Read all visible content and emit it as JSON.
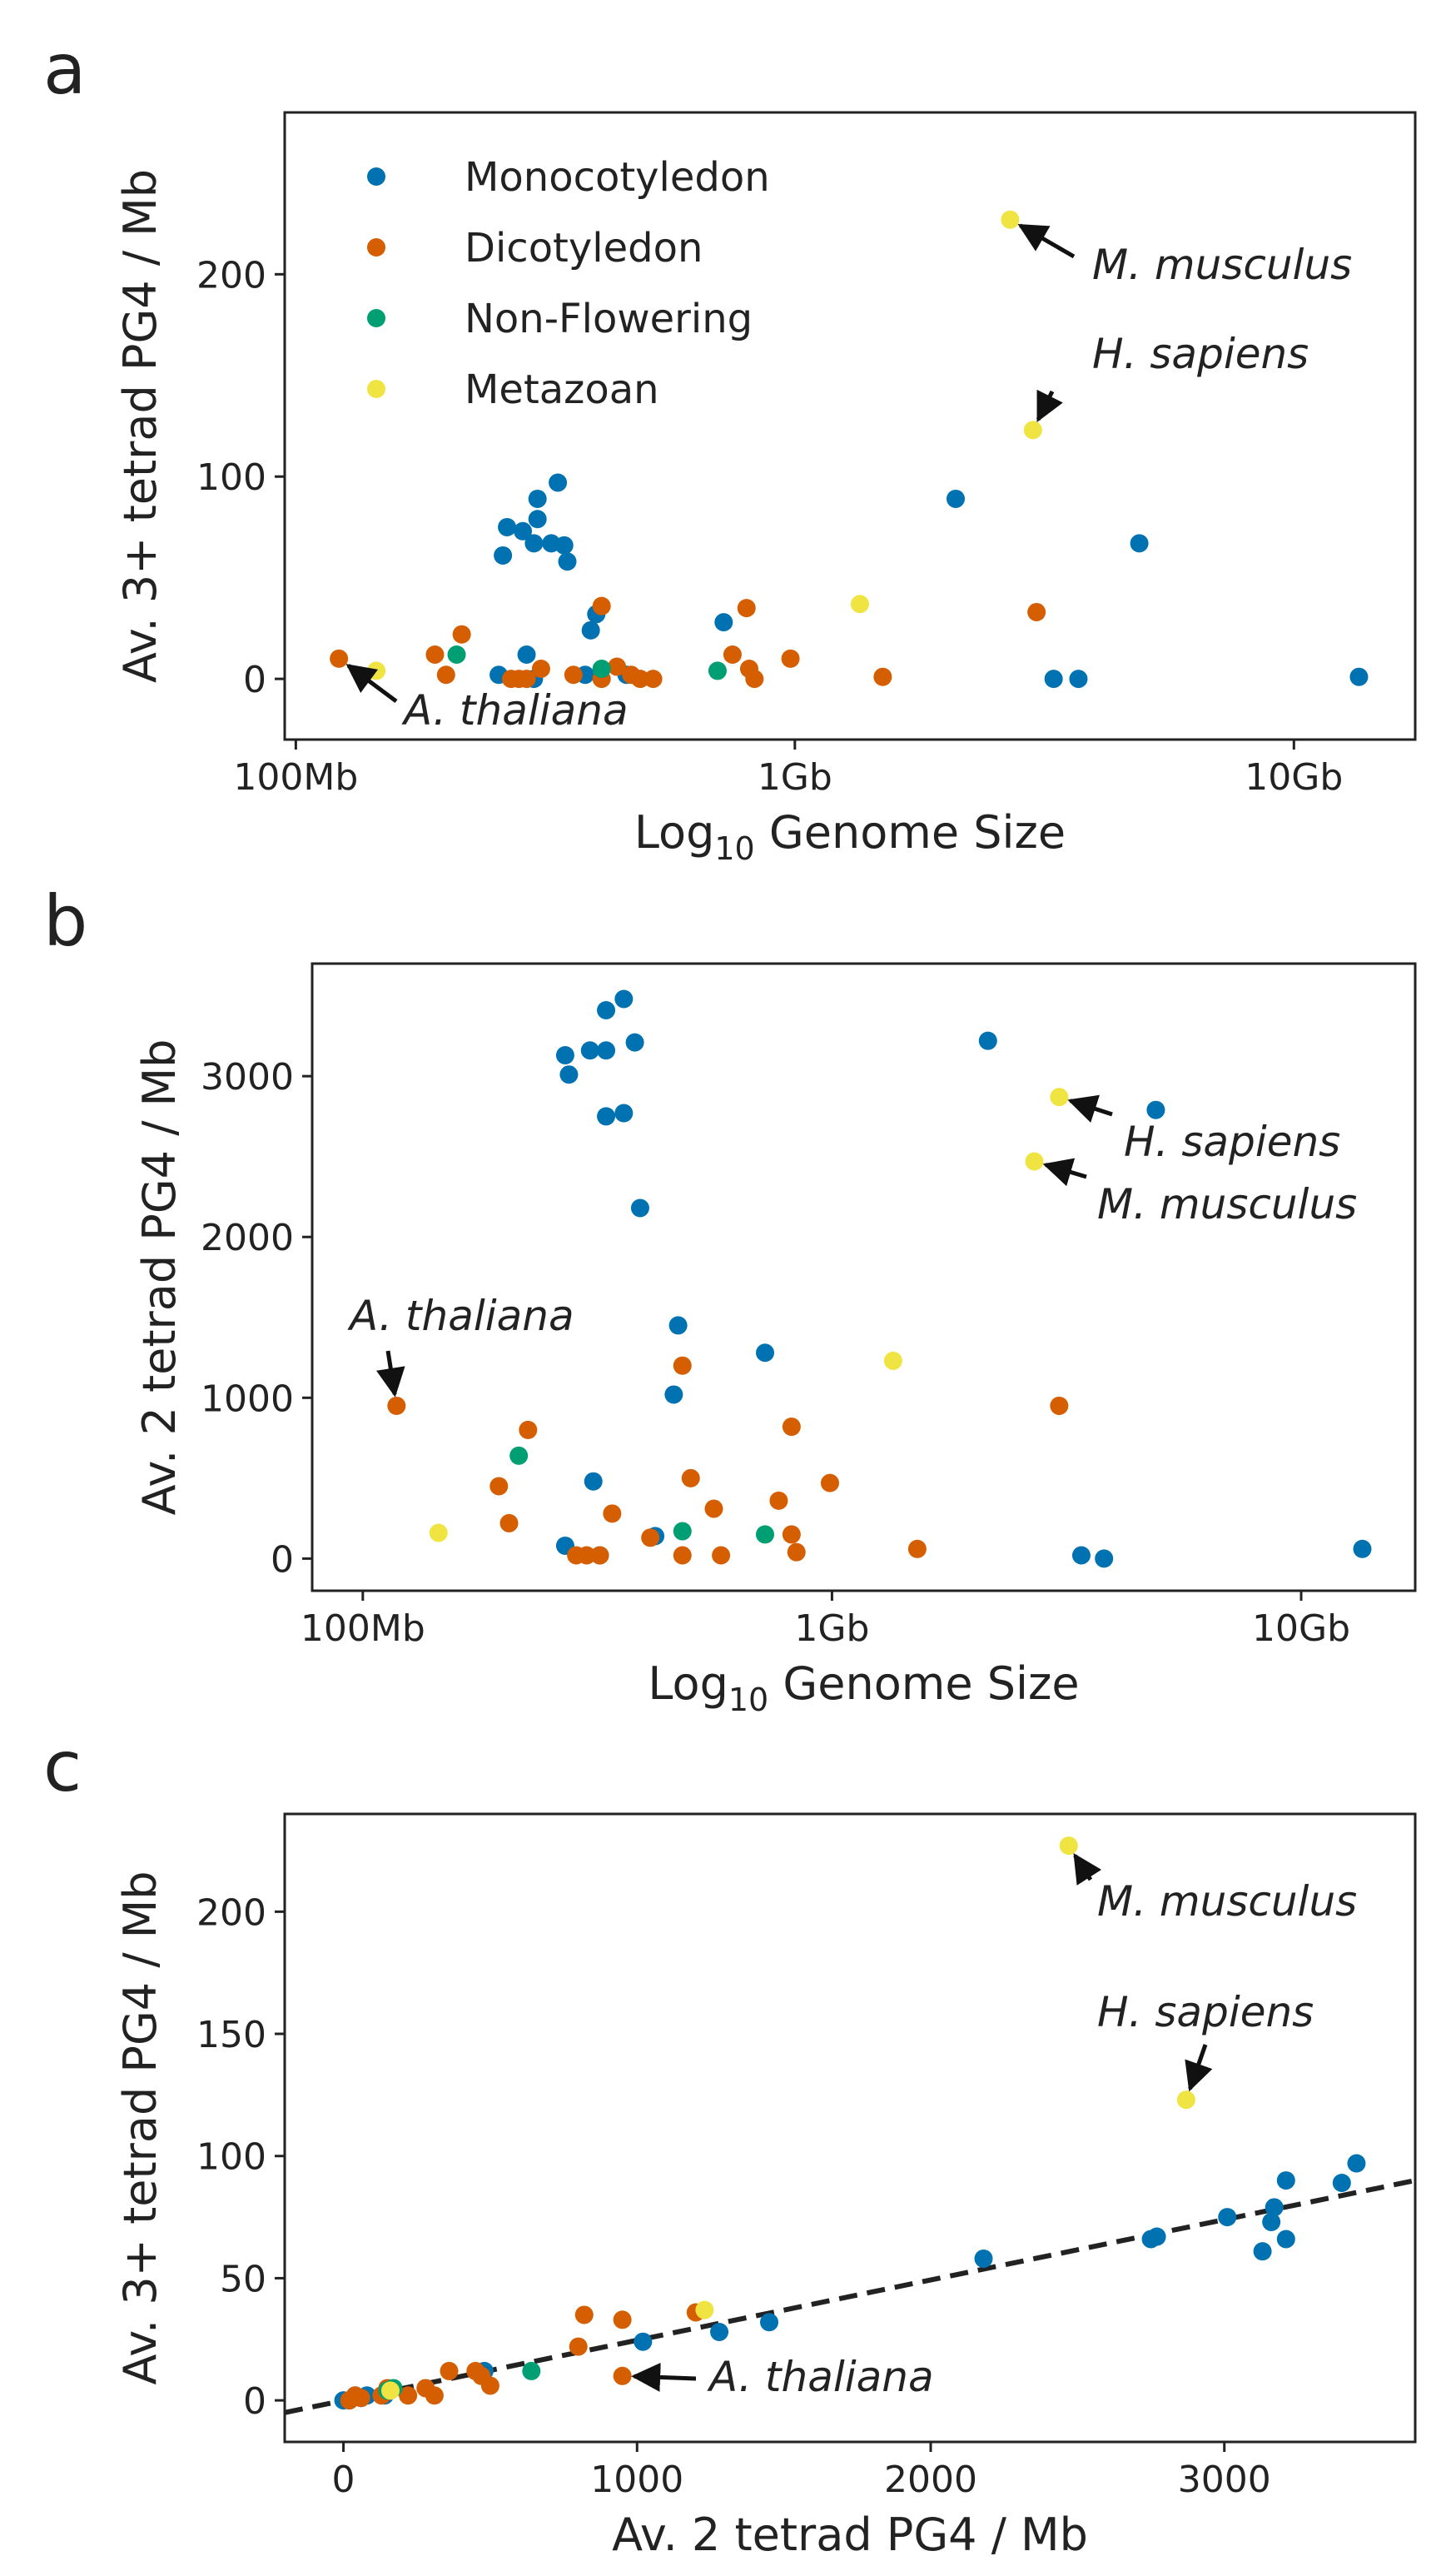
{
  "legend": [
    {
      "label": "Monocotyledon",
      "color": "#0072b2"
    },
    {
      "label": "Dicotyledon",
      "color": "#d55e00"
    },
    {
      "label": "Non-Flowering",
      "color": "#009e73"
    },
    {
      "label": "Metazoan",
      "color": "#f0e442"
    }
  ],
  "chart_data": [
    {
      "panel": "a",
      "type": "scatter",
      "xscale": "log",
      "xlabel": "Log10 Genome Size",
      "xlabel_parts": [
        "Log",
        "10",
        " Genome Size"
      ],
      "ylabel": "Av. 3+ tetrad PG4 / Mb",
      "xlim": [
        95000000,
        17500000000
      ],
      "ylim": [
        -30,
        280
      ],
      "xticks": [
        {
          "value": 100000000,
          "label": "100Mb"
        },
        {
          "value": 1000000000,
          "label": "1Gb"
        },
        {
          "value": 10000000000,
          "label": "10Gb"
        }
      ],
      "yticks": [
        {
          "value": 0,
          "label": "0"
        },
        {
          "value": 100,
          "label": "100"
        },
        {
          "value": 200,
          "label": "200"
        }
      ],
      "legend_position": "top-left",
      "series": [
        {
          "name": "Monocotyledon",
          "color": "#0072b2",
          "points": [
            [
              260000000,
              61
            ],
            [
              265000000,
              75
            ],
            [
              285000000,
              73
            ],
            [
              305000000,
              79
            ],
            [
              300000000,
              67
            ],
            [
              305000000,
              89
            ],
            [
              325000000,
              67
            ],
            [
              335000000,
              97
            ],
            [
              345000000,
              66
            ],
            [
              350000000,
              58
            ],
            [
              390000000,
              24
            ],
            [
              400000000,
              32
            ],
            [
              720000000,
              28
            ],
            [
              2100000000,
              89
            ],
            [
              4900000000,
              67
            ],
            [
              255000000,
              2
            ],
            [
              290000000,
              12
            ],
            [
              300000000,
              0
            ],
            [
              380000000,
              2
            ],
            [
              460000000,
              2
            ],
            [
              3300000000,
              0
            ],
            [
              3700000000,
              0
            ],
            [
              13500000000,
              1
            ]
          ]
        },
        {
          "name": "Dicotyledon",
          "color": "#d55e00",
          "points": [
            [
              122000000,
              10
            ],
            [
              190000000,
              12
            ],
            [
              200000000,
              2
            ],
            [
              215000000,
              22
            ],
            [
              270000000,
              0
            ],
            [
              280000000,
              0
            ],
            [
              290000000,
              0
            ],
            [
              310000000,
              5
            ],
            [
              360000000,
              2
            ],
            [
              410000000,
              36
            ],
            [
              410000000,
              0
            ],
            [
              440000000,
              6
            ],
            [
              470000000,
              2
            ],
            [
              490000000,
              0
            ],
            [
              520000000,
              0
            ],
            [
              750000000,
              12
            ],
            [
              800000000,
              35
            ],
            [
              810000000,
              5
            ],
            [
              830000000,
              0
            ],
            [
              980000000,
              10
            ],
            [
              1500000000,
              1
            ],
            [
              3050000000,
              33
            ]
          ]
        },
        {
          "name": "Non-Flowering",
          "color": "#009e73",
          "points": [
            [
              210000000,
              12
            ],
            [
              410000000,
              5
            ],
            [
              700000000,
              4
            ]
          ]
        },
        {
          "name": "Metazoan",
          "color": "#f0e442",
          "points": [
            [
              145000000,
              4
            ],
            [
              1350000000,
              37
            ],
            [
              2700000000,
              227
            ],
            [
              3000000000,
              123
            ]
          ]
        }
      ],
      "annotations": [
        {
          "text": "M. musculus",
          "x": 2700000000,
          "y": 227
        },
        {
          "text": "H. sapiens",
          "x": 3000000000,
          "y": 123
        },
        {
          "text": "A. thaliana",
          "x": 122000000,
          "y": 10
        }
      ]
    },
    {
      "panel": "b",
      "type": "scatter",
      "xscale": "log",
      "xlabel": "Log10 Genome Size",
      "xlabel_parts": [
        "Log",
        "10",
        " Genome Size"
      ],
      "ylabel": "Av. 2 tetrad PG4 / Mb",
      "xlim": [
        78000000,
        17500000000
      ],
      "ylim": [
        -200,
        3700
      ],
      "xticks": [
        {
          "value": 100000000,
          "label": "100Mb"
        },
        {
          "value": 1000000000,
          "label": "1Gb"
        },
        {
          "value": 10000000000,
          "label": "10Gb"
        }
      ],
      "yticks": [
        {
          "value": 0,
          "label": "0"
        },
        {
          "value": 1000,
          "label": "1000"
        },
        {
          "value": 2000,
          "label": "2000"
        },
        {
          "value": 3000,
          "label": "3000"
        }
      ],
      "series": [
        {
          "name": "Monocotyledon",
          "color": "#0072b2",
          "points": [
            [
              270000000,
              3130
            ],
            [
              275000000,
              3010
            ],
            [
              305000000,
              3160
            ],
            [
              330000000,
              3160
            ],
            [
              330000000,
              3410
            ],
            [
              360000000,
              3480
            ],
            [
              380000000,
              3210
            ],
            [
              330000000,
              2750
            ],
            [
              360000000,
              2770
            ],
            [
              390000000,
              2180
            ],
            [
              470000000,
              1450
            ],
            [
              460000000,
              1020
            ],
            [
              720000000,
              1280
            ],
            [
              2150000000,
              3220
            ],
            [
              4900000000,
              2790
            ],
            [
              310000000,
              480
            ],
            [
              270000000,
              80
            ],
            [
              320000000,
              20
            ],
            [
              420000000,
              140
            ],
            [
              3400000000,
              20
            ],
            [
              3800000000,
              0
            ],
            [
              13500000000,
              60
            ]
          ]
        },
        {
          "name": "Dicotyledon",
          "color": "#d55e00",
          "points": [
            [
              118000000,
              950
            ],
            [
              195000000,
              450
            ],
            [
              205000000,
              220
            ],
            [
              225000000,
              800
            ],
            [
              285000000,
              20
            ],
            [
              300000000,
              20
            ],
            [
              320000000,
              20
            ],
            [
              340000000,
              280
            ],
            [
              410000000,
              130
            ],
            [
              480000000,
              1200
            ],
            [
              500000000,
              500
            ],
            [
              560000000,
              310
            ],
            [
              580000000,
              20
            ],
            [
              480000000,
              20
            ],
            [
              770000000,
              360
            ],
            [
              820000000,
              820
            ],
            [
              820000000,
              150
            ],
            [
              840000000,
              40
            ],
            [
              990000000,
              470
            ],
            [
              1520000000,
              60
            ],
            [
              3050000000,
              950
            ]
          ]
        },
        {
          "name": "Non-Flowering",
          "color": "#009e73",
          "points": [
            [
              215000000,
              640
            ],
            [
              480000000,
              170
            ],
            [
              720000000,
              150
            ]
          ]
        },
        {
          "name": "Metazoan",
          "color": "#f0e442",
          "points": [
            [
              145000000,
              160
            ],
            [
              1350000000,
              1230
            ],
            [
              3050000000,
              2870
            ],
            [
              2700000000,
              2470
            ]
          ]
        }
      ],
      "annotations": [
        {
          "text": "H. sapiens",
          "x": 3050000000,
          "y": 2870
        },
        {
          "text": "M. musculus",
          "x": 2700000000,
          "y": 2470
        },
        {
          "text": "A. thaliana",
          "x": 118000000,
          "y": 950
        }
      ]
    },
    {
      "panel": "c",
      "type": "scatter",
      "xscale": "linear",
      "xlabel": "Av. 2 tetrad PG4 / Mb",
      "xlabel_parts": [
        "Av. 2 tetrad PG4 / Mb",
        "",
        ""
      ],
      "ylabel": "Av. 3+ tetrad PG4 / Mb",
      "xlim": [
        -200,
        3650
      ],
      "ylim": [
        -17,
        240
      ],
      "xticks": [
        {
          "value": 0,
          "label": "0"
        },
        {
          "value": 1000,
          "label": "1000"
        },
        {
          "value": 2000,
          "label": "2000"
        },
        {
          "value": 3000,
          "label": "3000"
        }
      ],
      "yticks": [
        {
          "value": 0,
          "label": "0"
        },
        {
          "value": 50,
          "label": "50"
        },
        {
          "value": 100,
          "label": "100"
        },
        {
          "value": 150,
          "label": "150"
        },
        {
          "value": 200,
          "label": "200"
        }
      ],
      "fit_line": {
        "x": [
          -200,
          3650
        ],
        "y": [
          -5,
          90
        ]
      },
      "series": [
        {
          "name": "Monocotyledon",
          "color": "#0072b2",
          "points": [
            [
              3450,
              97
            ],
            [
              3400,
              89
            ],
            [
              3210,
              90
            ],
            [
              3170,
              79
            ],
            [
              3160,
              73
            ],
            [
              3130,
              61
            ],
            [
              3210,
              66
            ],
            [
              3010,
              75
            ],
            [
              2770,
              67
            ],
            [
              2750,
              66
            ],
            [
              2180,
              58
            ],
            [
              1450,
              32
            ],
            [
              1280,
              28
            ],
            [
              1020,
              24
            ],
            [
              480,
              12
            ],
            [
              80,
              2
            ],
            [
              20,
              0
            ],
            [
              140,
              2
            ],
            [
              20,
              0
            ],
            [
              0,
              0
            ],
            [
              60,
              1
            ],
            [
              40,
              2
            ]
          ]
        },
        {
          "name": "Dicotyledon",
          "color": "#d55e00",
          "points": [
            [
              950,
              10
            ],
            [
              450,
              12
            ],
            [
              220,
              2
            ],
            [
              800,
              22
            ],
            [
              820,
              35
            ],
            [
              950,
              33
            ],
            [
              1200,
              36
            ],
            [
              500,
              6
            ],
            [
              310,
              2
            ],
            [
              280,
              5
            ],
            [
              360,
              12
            ],
            [
              130,
              2
            ],
            [
              20,
              0
            ],
            [
              60,
              1
            ],
            [
              40,
              2
            ],
            [
              150,
              5
            ],
            [
              470,
              10
            ]
          ]
        },
        {
          "name": "Non-Flowering",
          "color": "#009e73",
          "points": [
            [
              640,
              12
            ],
            [
              170,
              5
            ],
            [
              150,
              4
            ]
          ]
        },
        {
          "name": "Metazoan",
          "color": "#f0e442",
          "points": [
            [
              2470,
              227
            ],
            [
              2870,
              123
            ],
            [
              1230,
              37
            ],
            [
              160,
              4
            ]
          ]
        }
      ],
      "annotations": [
        {
          "text": "M. musculus",
          "x": 2470,
          "y": 227
        },
        {
          "text": "H. sapiens",
          "x": 2870,
          "y": 123
        },
        {
          "text": "A. thaliana",
          "x": 950,
          "y": 10
        }
      ]
    }
  ]
}
